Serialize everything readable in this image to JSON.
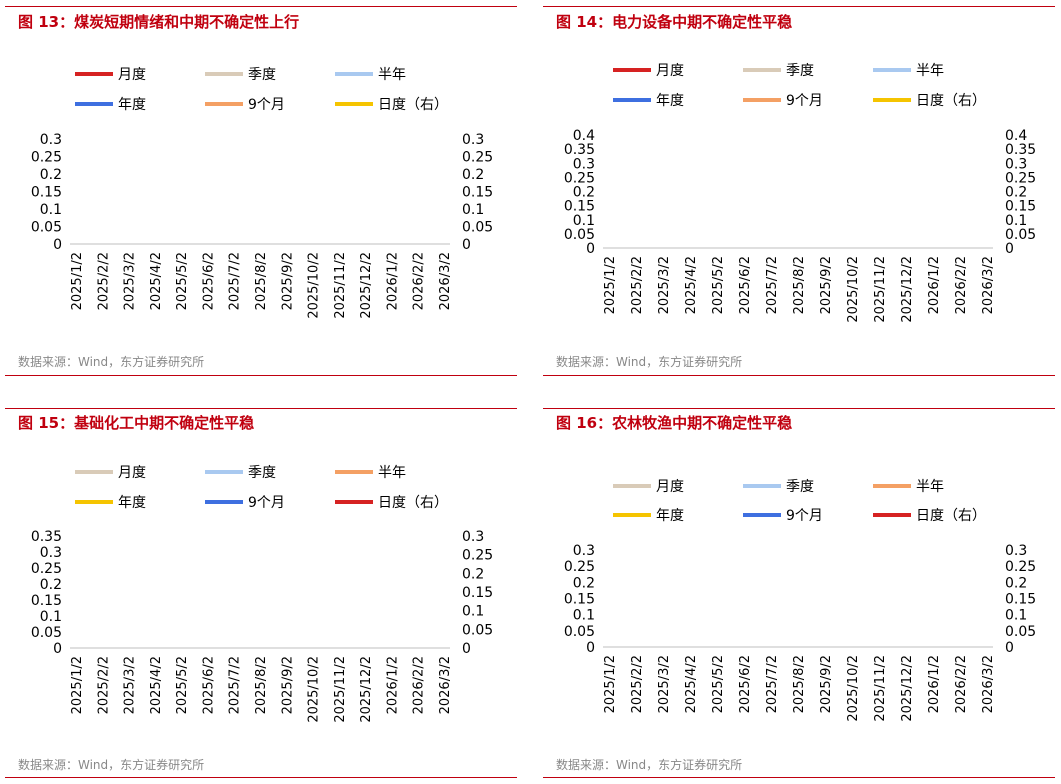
{
  "panels": [
    {
      "title": "图 13：煤炭短期情绪和中期不确定性上行",
      "source": "数据来源：Wind，东方证券研究所",
      "chart_data": {
        "type": "line",
        "title": "图 13：煤炭短期情绪和中期不确定性上行",
        "legend": [
          {
            "name": "月度",
            "color": "#d62222"
          },
          {
            "name": "季度",
            "color": "#d9cbb8"
          },
          {
            "name": "半年",
            "color": "#a9c9f0"
          },
          {
            "name": "年度",
            "color": "#3e6fe0"
          },
          {
            "name": "9个月",
            "color": "#f4a064"
          },
          {
            "name": "日度（右）",
            "color": "#f5c400"
          }
        ],
        "x_labels": [
          "2025/1/2",
          "2025/2/2",
          "2025/3/2",
          "2025/4/2",
          "2025/5/2",
          "2025/6/2",
          "2025/7/2",
          "2025/8/2",
          "2025/9/2",
          "2025/10/2",
          "2025/11/2",
          "2025/12/2",
          "2026/1/2",
          "2026/2/2",
          "2026/3/2"
        ],
        "y_left_ticks": [
          "0.3",
          "0.25",
          "0.2",
          "0.15",
          "0.1",
          "0.05",
          "0"
        ],
        "y_right_ticks": [
          "0.3",
          "0.25",
          "0.2",
          "0.15",
          "0.1",
          "0.05",
          "0"
        ],
        "ylim_left": [
          0,
          0.3
        ],
        "ylim_right": [
          0,
          0.3
        ],
        "series": []
      }
    },
    {
      "title": "图 14：电力设备中期不确定性平稳",
      "source": "数据来源：Wind，东方证券研究所",
      "chart_data": {
        "type": "line",
        "title": "图 14：电力设备中期不确定性平稳",
        "legend": [
          {
            "name": "月度",
            "color": "#d62222"
          },
          {
            "name": "季度",
            "color": "#d9cbb8"
          },
          {
            "name": "半年",
            "color": "#a9c9f0"
          },
          {
            "name": "年度",
            "color": "#3e6fe0"
          },
          {
            "name": "9个月",
            "color": "#f4a064"
          },
          {
            "name": "日度（右）",
            "color": "#f5c400"
          }
        ],
        "x_labels": [
          "2025/1/2",
          "2025/2/2",
          "2025/3/2",
          "2025/4/2",
          "2025/5/2",
          "2025/6/2",
          "2025/7/2",
          "2025/8/2",
          "2025/9/2",
          "2025/10/2",
          "2025/11/2",
          "2025/12/2",
          "2026/1/2",
          "2026/2/2",
          "2026/3/2"
        ],
        "y_left_ticks": [
          "0.4",
          "0.35",
          "0.3",
          "0.25",
          "0.2",
          "0.15",
          "0.1",
          "0.05",
          "0"
        ],
        "y_right_ticks": [
          "0.4",
          "0.35",
          "0.3",
          "0.25",
          "0.2",
          "0.15",
          "0.1",
          "0.05",
          "0"
        ],
        "ylim_left": [
          0,
          0.4
        ],
        "ylim_right": [
          0,
          0.4
        ],
        "series": []
      }
    },
    {
      "title": "图 15：基础化工中期不确定性平稳",
      "source": "数据来源：Wind，东方证券研究所",
      "chart_data": {
        "type": "line",
        "title": "图 15：基础化工中期不确定性平稳",
        "legend": [
          {
            "name": "月度",
            "color": "#d9cbb8"
          },
          {
            "name": "季度",
            "color": "#a9c9f0"
          },
          {
            "name": "半年",
            "color": "#f4a064"
          },
          {
            "name": "年度",
            "color": "#f5c400"
          },
          {
            "name": "9个月",
            "color": "#3e6fe0"
          },
          {
            "name": "日度（右）",
            "color": "#d62222"
          }
        ],
        "x_labels": [
          "2025/1/2",
          "2025/2/2",
          "2025/3/2",
          "2025/4/2",
          "2025/5/2",
          "2025/6/2",
          "2025/7/2",
          "2025/8/2",
          "2025/9/2",
          "2025/10/2",
          "2025/11/2",
          "2025/12/2",
          "2026/1/2",
          "2026/2/2",
          "2026/3/2"
        ],
        "y_left_ticks": [
          "0.35",
          "0.3",
          "0.25",
          "0.2",
          "0.15",
          "0.1",
          "0.05",
          "0"
        ],
        "y_right_ticks": [
          "0.3",
          "0.25",
          "0.2",
          "0.15",
          "0.1",
          "0.05",
          "0"
        ],
        "ylim_left": [
          0,
          0.35
        ],
        "ylim_right": [
          0,
          0.3
        ],
        "series": []
      }
    },
    {
      "title": "图 16：农林牧渔中期不确定性平稳",
      "source": "数据来源：Wind，东方证券研究所",
      "chart_data": {
        "type": "line",
        "title": "图 16：农林牧渔中期不确定性平稳",
        "legend": [
          {
            "name": "月度",
            "color": "#d9cbb8"
          },
          {
            "name": "季度",
            "color": "#a9c9f0"
          },
          {
            "name": "半年",
            "color": "#f4a064"
          },
          {
            "name": "年度",
            "color": "#f5c400"
          },
          {
            "name": "9个月",
            "color": "#3e6fe0"
          },
          {
            "name": "日度（右）",
            "color": "#d62222"
          }
        ],
        "x_labels": [
          "2025/1/2",
          "2025/2/2",
          "2025/3/2",
          "2025/4/2",
          "2025/5/2",
          "2025/6/2",
          "2025/7/2",
          "2025/8/2",
          "2025/9/2",
          "2025/10/2",
          "2025/11/2",
          "2025/12/2",
          "2026/1/2",
          "2026/2/2",
          "2026/3/2"
        ],
        "y_left_ticks": [
          "0.3",
          "0.25",
          "0.2",
          "0.15",
          "0.1",
          "0.05",
          "0"
        ],
        "y_right_ticks": [
          "0.3",
          "0.25",
          "0.2",
          "0.15",
          "0.1",
          "0.05",
          "0"
        ],
        "ylim_left": [
          0,
          0.3
        ],
        "ylim_right": [
          0,
          0.3
        ],
        "series": []
      }
    }
  ]
}
